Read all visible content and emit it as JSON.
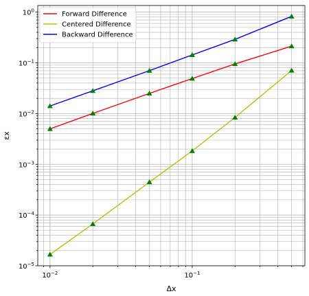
{
  "chart_data": {
    "type": "line",
    "title": "",
    "xlabel": "Δx",
    "ylabel": "εx",
    "x_scale": "log",
    "y_scale": "log",
    "xlim": [
      0.0082,
      0.62
    ],
    "ylim": [
      1e-05,
      1.35
    ],
    "grid": true,
    "legend_position": "top-left",
    "x_ticks": [
      {
        "value": 0.01,
        "base": "10",
        "exp": "−2"
      },
      {
        "value": 0.1,
        "base": "10",
        "exp": "−1"
      }
    ],
    "y_ticks": [
      {
        "value": 1e-05,
        "base": "10",
        "exp": "−5"
      },
      {
        "value": 0.0001,
        "base": "10",
        "exp": "−4"
      },
      {
        "value": 0.001,
        "base": "10",
        "exp": "−3"
      },
      {
        "value": 0.01,
        "base": "10",
        "exp": "−2"
      },
      {
        "value": 0.1,
        "base": "10",
        "exp": "−1"
      },
      {
        "value": 1,
        "base": "10",
        "exp": "0"
      }
    ],
    "x": [
      0.01,
      0.02,
      0.05,
      0.1,
      0.2,
      0.5
    ],
    "marker_color": "#008000",
    "series": [
      {
        "name": "Forward Difference",
        "color": "#ff0000",
        "values": [
          0.005,
          0.0101,
          0.025,
          0.049,
          0.095,
          0.213
        ]
      },
      {
        "name": "Centered Difference",
        "color": "#bfbf00",
        "values": [
          1.67e-05,
          6.67e-05,
          0.000446,
          0.00184,
          0.0084,
          0.0706
        ]
      },
      {
        "name": "Backward Difference",
        "color": "#0000ff",
        "values": [
          0.0141,
          0.0281,
          0.0701,
          0.143,
          0.29,
          0.824
        ]
      }
    ]
  }
}
